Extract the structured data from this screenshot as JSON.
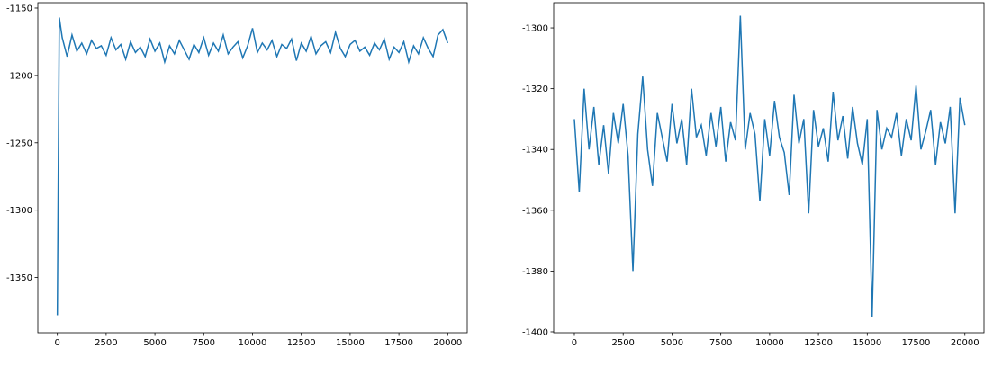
{
  "chart_data": [
    {
      "type": "line",
      "color": "#1f77b4",
      "x": [
        0,
        100,
        250,
        500,
        750,
        1000,
        1250,
        1500,
        1750,
        2000,
        2250,
        2500,
        2750,
        3000,
        3250,
        3500,
        3750,
        4000,
        4250,
        4500,
        4750,
        5000,
        5250,
        5500,
        5750,
        6000,
        6250,
        6500,
        6750,
        7000,
        7250,
        7500,
        7750,
        8000,
        8250,
        8500,
        8750,
        9000,
        9250,
        9500,
        9750,
        10000,
        10250,
        10500,
        10750,
        11000,
        11250,
        11500,
        11750,
        12000,
        12250,
        12500,
        12750,
        13000,
        13250,
        13500,
        13750,
        14000,
        14250,
        14500,
        14750,
        15000,
        15250,
        15500,
        15750,
        16000,
        16250,
        16500,
        16750,
        17000,
        17250,
        17500,
        17750,
        18000,
        18250,
        18500,
        18750,
        19000,
        19250,
        19500,
        19750,
        20000
      ],
      "values": [
        -1378,
        -1157,
        -1172,
        -1186,
        -1170,
        -1182,
        -1176,
        -1184,
        -1174,
        -1180,
        -1178,
        -1185,
        -1172,
        -1181,
        -1177,
        -1188,
        -1175,
        -1183,
        -1179,
        -1186,
        -1173,
        -1182,
        -1176,
        -1190,
        -1178,
        -1184,
        -1174,
        -1181,
        -1188,
        -1177,
        -1183,
        -1172,
        -1185,
        -1176,
        -1182,
        -1170,
        -1184,
        -1179,
        -1175,
        -1187,
        -1178,
        -1165,
        -1183,
        -1176,
        -1181,
        -1174,
        -1186,
        -1177,
        -1180,
        -1173,
        -1189,
        -1176,
        -1182,
        -1171,
        -1184,
        -1178,
        -1175,
        -1183,
        -1168,
        -1180,
        -1186,
        -1177,
        -1174,
        -1182,
        -1179,
        -1185,
        -1176,
        -1181,
        -1173,
        -1188,
        -1179,
        -1183,
        -1175,
        -1190,
        -1178,
        -1184,
        -1172,
        -1180,
        -1186,
        -1170,
        -1166,
        -1176
      ],
      "xlim": [
        -1000,
        21000
      ],
      "xticks": [
        0,
        2500,
        5000,
        7500,
        10000,
        12500,
        15000,
        17500,
        20000
      ],
      "ylim": [
        -1391,
        -1146
      ],
      "yticks": [
        -1350,
        -1300,
        -1250,
        -1200,
        -1150
      ]
    },
    {
      "type": "line",
      "color": "#1f77b4",
      "x": [
        0,
        250,
        500,
        750,
        1000,
        1250,
        1500,
        1750,
        2000,
        2250,
        2500,
        2750,
        3000,
        3250,
        3500,
        3750,
        4000,
        4250,
        4500,
        4750,
        5000,
        5250,
        5500,
        5750,
        6000,
        6250,
        6500,
        6750,
        7000,
        7250,
        7500,
        7750,
        8000,
        8250,
        8500,
        8750,
        9000,
        9250,
        9500,
        9750,
        10000,
        10250,
        10500,
        10750,
        11000,
        11250,
        11500,
        11750,
        12000,
        12250,
        12500,
        12750,
        13000,
        13250,
        13500,
        13750,
        14000,
        14250,
        14500,
        14750,
        15000,
        15250,
        15500,
        15750,
        16000,
        16250,
        16500,
        16750,
        17000,
        17250,
        17500,
        17750,
        18000,
        18250,
        18500,
        18750,
        19000,
        19250,
        19500,
        19750,
        20000
      ],
      "values": [
        -1330,
        -1354,
        -1320,
        -1340,
        -1326,
        -1345,
        -1332,
        -1348,
        -1328,
        -1338,
        -1325,
        -1342,
        -1380,
        -1335,
        -1316,
        -1340,
        -1352,
        -1328,
        -1336,
        -1344,
        -1325,
        -1338,
        -1330,
        -1345,
        -1320,
        -1336,
        -1332,
        -1342,
        -1328,
        -1339,
        -1326,
        -1344,
        -1331,
        -1337,
        -1296,
        -1340,
        -1328,
        -1335,
        -1357,
        -1330,
        -1342,
        -1324,
        -1336,
        -1341,
        -1355,
        -1322,
        -1338,
        -1330,
        -1361,
        -1327,
        -1339,
        -1333,
        -1344,
        -1321,
        -1337,
        -1329,
        -1343,
        -1326,
        -1338,
        -1345,
        -1330,
        -1395,
        -1327,
        -1340,
        -1333,
        -1336,
        -1328,
        -1342,
        -1330,
        -1337,
        -1319,
        -1340,
        -1334,
        -1327,
        -1345,
        -1331,
        -1338,
        -1326,
        -1361,
        -1323,
        -1332
      ],
      "xlim": [
        -1060,
        20980
      ],
      "xticks": [
        0,
        2500,
        5000,
        7500,
        10000,
        12500,
        15000,
        17500,
        20000
      ],
      "ylim": [
        -1400.3,
        -1291.7
      ],
      "yticks": [
        -1400,
        -1380,
        -1360,
        -1340,
        -1320,
        -1300
      ]
    }
  ]
}
